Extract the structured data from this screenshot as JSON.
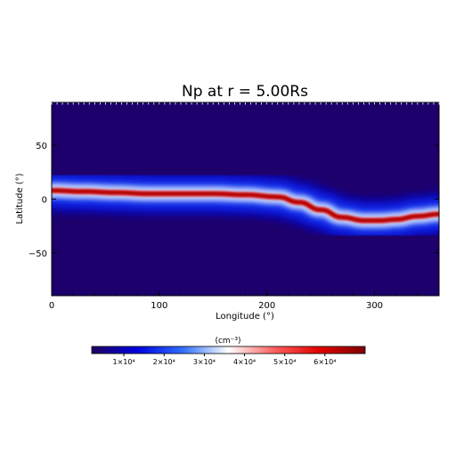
{
  "chart_data": {
    "type": "heatmap",
    "title": "Np at r = 5.00Rs",
    "xlabel": "Longitude (°)",
    "ylabel": "Latitude (°)",
    "xlim": [
      0,
      360
    ],
    "ylim": [
      -90,
      90
    ],
    "x_ticks": [
      0,
      100,
      200,
      300
    ],
    "y_ticks": [
      50,
      0,
      -50
    ],
    "x_tick_labels": [
      "0",
      "100",
      "200",
      "300"
    ],
    "y_tick_labels": [
      "50",
      "0",
      "−50"
    ],
    "colorbar": {
      "unit_label": "(cm⁻³)",
      "range": [
        2000,
        70000
      ],
      "ticks": [
        10000,
        20000,
        30000,
        40000,
        50000,
        60000
      ],
      "tick_labels": [
        "1×10⁴",
        "2×10⁴",
        "3×10⁴",
        "4×10⁴",
        "5×10⁴",
        "6×10⁴"
      ],
      "colormap": [
        "#200060",
        "#0000e0",
        "#3070ff",
        "#ffffff",
        "#ff6060",
        "#e00000",
        "#800000"
      ]
    },
    "background_value": 3000,
    "band_centerline": {
      "longitude": [
        0,
        30,
        60,
        90,
        120,
        150,
        180,
        210,
        230,
        250,
        270,
        290,
        305,
        320,
        340,
        360
      ],
      "latitude": [
        8,
        7,
        6,
        5,
        5,
        5,
        4,
        2,
        -3,
        -10,
        -17,
        -20,
        -20,
        -19,
        -16,
        -14
      ]
    }
  }
}
